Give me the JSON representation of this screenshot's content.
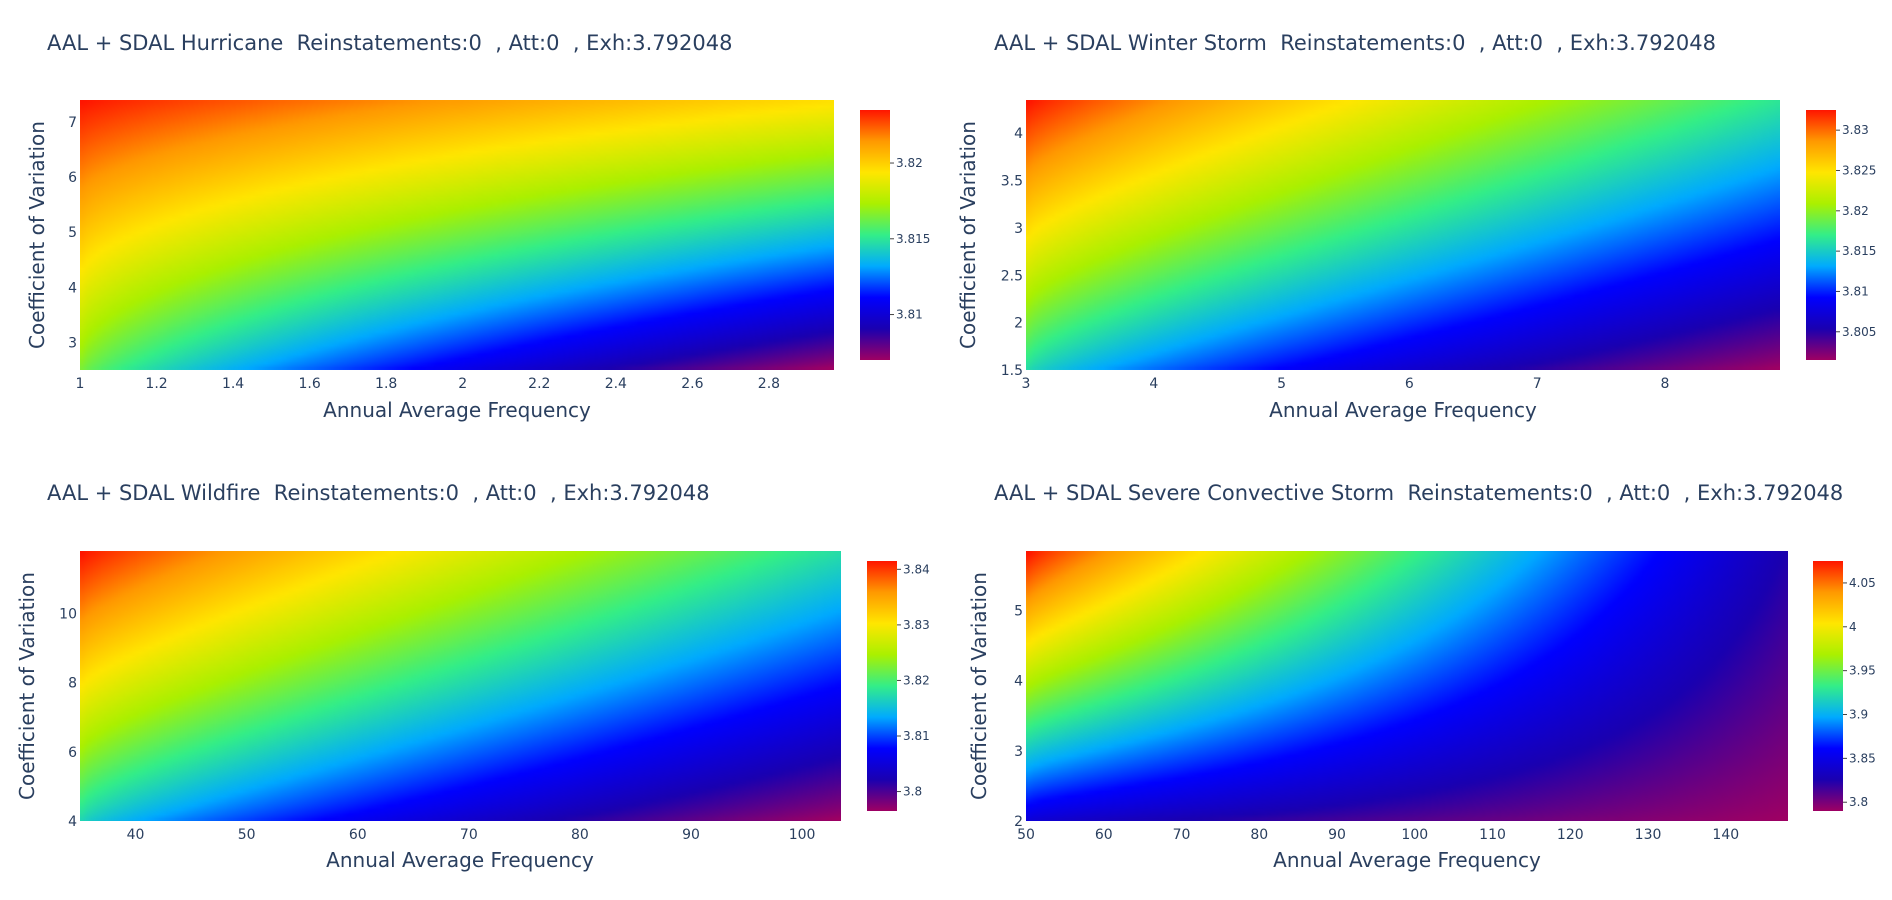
{
  "chart_data": [
    {
      "type": "heatmap",
      "title": "AAL + SDAL Hurricane  Reinstatements:0  , Att:0  , Exh:3.792048",
      "xlabel": "Annual Average Frequency",
      "ylabel": "Coefficient of Variation",
      "xlim": [
        1,
        2.97
      ],
      "ylim": [
        2.5,
        7.4
      ],
      "xticks": [
        "1",
        "1.2",
        "1.4",
        "1.6",
        "1.8",
        "2",
        "2.2",
        "2.4",
        "2.6",
        "2.8"
      ],
      "xtick_values": [
        1,
        1.2,
        1.4,
        1.6,
        1.8,
        2,
        2.2,
        2.4,
        2.6,
        2.8
      ],
      "yticks": [
        "3",
        "4",
        "5",
        "6",
        "7"
      ],
      "ytick_values": [
        3,
        4,
        5,
        6,
        7
      ],
      "zlim": [
        3.807,
        3.8235
      ],
      "colorbar_ticks": [
        "3.81",
        "3.815",
        "3.82"
      ],
      "colorbar_values": [
        3.81,
        3.815,
        3.82
      ],
      "corner_values": {
        "low_x_high_y": 3.8235,
        "high_x_high_y": 3.8195,
        "low_x_low_y": 3.8165,
        "high_x_low_y": 3.807
      }
    },
    {
      "type": "heatmap",
      "title": "AAL + SDAL Winter Storm  Reinstatements:0  , Att:0  , Exh:3.792048",
      "xlabel": "Annual Average Frequency",
      "ylabel": "Coefficient of Variation",
      "xlim": [
        3,
        8.9
      ],
      "ylim": [
        1.5,
        4.35
      ],
      "xticks": [
        "3",
        "4",
        "5",
        "6",
        "7",
        "8"
      ],
      "xtick_values": [
        3,
        4,
        5,
        6,
        7,
        8
      ],
      "yticks": [
        "1.5",
        "2",
        "2.5",
        "3",
        "3.5",
        "4"
      ],
      "ytick_values": [
        1.5,
        2,
        2.5,
        3,
        3.5,
        4
      ],
      "zlim": [
        3.8015,
        3.8325
      ],
      "colorbar_ticks": [
        "3.805",
        "3.81",
        "3.815",
        "3.82",
        "3.825",
        "3.83"
      ],
      "colorbar_values": [
        3.805,
        3.81,
        3.815,
        3.82,
        3.825,
        3.83
      ],
      "corner_values": {
        "low_x_high_y": 3.8325,
        "high_x_high_y": 3.8165,
        "low_x_low_y": 3.816,
        "high_x_low_y": 3.8015
      }
    },
    {
      "type": "heatmap",
      "title": "AAL + SDAL Wildfire  Reinstatements:0  , Att:0  , Exh:3.792048",
      "xlabel": "Annual Average Frequency",
      "ylabel": "Coefficient of Variation",
      "xlim": [
        35,
        103.5
      ],
      "ylim": [
        4,
        11.8
      ],
      "xticks": [
        "40",
        "50",
        "60",
        "70",
        "80",
        "90",
        "100"
      ],
      "xtick_values": [
        40,
        50,
        60,
        70,
        80,
        90,
        100
      ],
      "yticks": [
        "4",
        "6",
        "8",
        "10"
      ],
      "ytick_values": [
        4,
        6,
        8,
        10
      ],
      "zlim": [
        3.7965,
        3.8415
      ],
      "colorbar_ticks": [
        "3.8",
        "3.81",
        "3.82",
        "3.83",
        "3.84"
      ],
      "colorbar_values": [
        3.8,
        3.81,
        3.82,
        3.83,
        3.84
      ],
      "corner_values": {
        "low_x_high_y": 3.8415,
        "high_x_high_y": 3.8175,
        "low_x_low_y": 3.817,
        "high_x_low_y": 3.7965
      }
    },
    {
      "type": "heatmap",
      "title": "AAL + SDAL Severe Convective Storm  Reinstatements:0  , Att:0  , Exh:3.792048",
      "xlabel": "Annual Average Frequency",
      "ylabel": "Coefficient of Variation",
      "xlim": [
        50,
        148
      ],
      "ylim": [
        2,
        5.85
      ],
      "xticks": [
        "50",
        "60",
        "70",
        "80",
        "90",
        "100",
        "110",
        "120",
        "130",
        "140"
      ],
      "xtick_values": [
        50,
        60,
        70,
        80,
        90,
        100,
        110,
        120,
        130,
        140
      ],
      "yticks": [
        "2",
        "3",
        "4",
        "5"
      ],
      "ytick_values": [
        2,
        3,
        4,
        5
      ],
      "zlim": [
        3.79,
        4.075
      ],
      "colorbar_ticks": [
        "3.8",
        "3.85",
        "3.9",
        "3.95",
        "4",
        "4.05"
      ],
      "colorbar_values": [
        3.8,
        3.85,
        3.9,
        3.95,
        4,
        4.05
      ],
      "corner_values": {
        "low_x_high_y": 4.075,
        "high_x_high_y": 3.825,
        "low_x_low_y": 3.845,
        "high_x_low_y": 3.79
      }
    }
  ],
  "colorscale": [
    "#9e0063",
    "#1a00b0",
    "#0000ff",
    "#00aaff",
    "#33ee88",
    "#aaf000",
    "#ffe600",
    "#ff9900",
    "#ff1500"
  ]
}
